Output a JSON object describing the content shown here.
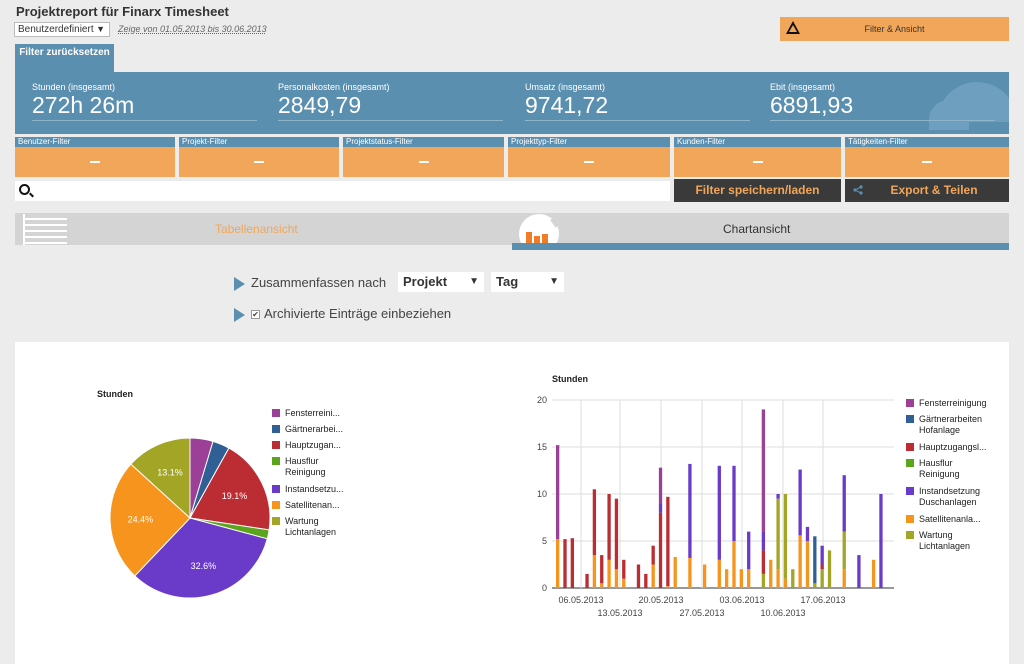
{
  "header": {
    "title": "Projektreport für Finarx Timesheet",
    "period_select": "Benutzerdefiniert",
    "period_text": "Zeige von 01.05.2013 bis 30.06.2013",
    "filter_view_button": "Filter & Ansicht",
    "reset_filter": "Filter zurücksetzen"
  },
  "kpis": [
    {
      "label": "Stunden (insgesamt)",
      "value": "272h 26m"
    },
    {
      "label": "Personalkosten (insgesamt)",
      "value": "2849,79"
    },
    {
      "label": "Umsatz (insgesamt)",
      "value": "9741,72"
    },
    {
      "label": "Ebit (insgesamt)",
      "value": "6891,93"
    }
  ],
  "filters": [
    {
      "label": "Benutzer-Filter",
      "value": "-"
    },
    {
      "label": "Projekt-Filter",
      "value": "-"
    },
    {
      "label": "Projektstatus-Filter",
      "value": "-"
    },
    {
      "label": "Projekttyp-Filter",
      "value": "-"
    },
    {
      "label": "Kunden-Filter",
      "value": "-"
    },
    {
      "label": "Tätigkeiten-Filter",
      "value": "-"
    }
  ],
  "actions": {
    "save_load": "Filter speichern/laden",
    "export_share": "Export & Teilen"
  },
  "views": {
    "table": "Tabellenansicht",
    "chart": "Chartansicht"
  },
  "options": {
    "summarize_label": "Zusammenfassen nach",
    "group_by": "Projekt",
    "interval": "Tag",
    "archived_label": "Archivierte Einträge einbeziehen"
  },
  "colors": {
    "Fensterreinigung": "#9c3f97",
    "Gärtnerarbeiten": "#2f5f95",
    "Hauptzugang": "#bb2c33",
    "Hausflur": "#5aa51b",
    "Instandsetzung": "#6a3bc9",
    "Satelliten": "#f7941d",
    "Wartung": "#a2a526"
  },
  "chart_data": [
    {
      "type": "pie",
      "title": "Stunden",
      "series_order": [
        "Fensterreinigung",
        "Gärtnerarbeiten",
        "Hauptzugang",
        "Hausflur",
        "Instandsetzung",
        "Satelliten",
        "Wartung"
      ],
      "legend": [
        "Fensterreini...",
        "Gärtnerarbei...",
        "Hauptzugan...",
        "Hausflur Reinigung",
        "Instandsetzu...",
        "Satellitenan...",
        "Wartung Lichtanlagen"
      ],
      "values": [
        4.6,
        3.4,
        19.1,
        1.8,
        32.6,
        24.4,
        13.1
      ],
      "slice_labels": [
        "",
        "",
        "19.1%",
        "",
        "32.6%",
        "24.4%",
        "13.1%"
      ]
    },
    {
      "type": "bar",
      "stacked": true,
      "title": "Stunden",
      "ylim": [
        0,
        20
      ],
      "y_ticks": [
        0,
        5,
        10,
        15,
        20
      ],
      "x_labels_row1": [
        "06.05.2013",
        "20.05.2013",
        "03.06.2013",
        "17.06.2013"
      ],
      "x_labels_row2": [
        "13.05.2013",
        "27.05.2013",
        "10.06.2013"
      ],
      "legend": [
        "Fensterreinigung",
        "Gärtnerarbeiten Hofanlage",
        "Hauptzugangsl...",
        "Hausflur Reinigung",
        "Instandsetzung Duschanlagen",
        "Satellitenanla...",
        "Wartung Lichtanlagen"
      ],
      "bars": [
        {
          "F": 10,
          "S": 5.2
        },
        {
          "H": 5.2
        },
        {
          "H": 5.3
        },
        {},
        {
          "H": 1.5
        },
        {
          "H": 7,
          "S": 3.5
        },
        {
          "H": 3,
          "S": 0.5
        },
        {
          "H": 7,
          "S": 3
        },
        {
          "H": 7.5,
          "S": 2
        },
        {
          "H": 2,
          "S": 1
        },
        {},
        {
          "H": 2.5
        },
        {
          "H": 1.5
        },
        {
          "H": 2,
          "S": 2.5
        },
        {
          "H": 8,
          "I": 1,
          "F": 3.8
        },
        {
          "H": 9.5,
          "S": 0.2
        },
        {
          "S": 3.3
        },
        {},
        {
          "I": 10,
          "S": 3.2
        },
        {},
        {
          "S": 2.5
        },
        {},
        {
          "I": 10,
          "S": 3
        },
        {
          "S": 2
        },
        {
          "I": 8,
          "S": 5
        },
        {
          "S": 2
        },
        {
          "I": 4,
          "S": 2
        },
        {},
        {
          "I": 2,
          "W": 1.5,
          "H": 2.5,
          "F": 13
        },
        {
          "S": 3
        },
        {
          "S": 2,
          "W": 7.5,
          "I": 0.5
        },
        {
          "W": 9,
          "S": 1
        },
        {
          "W": 2
        },
        {
          "S": 5.6,
          "I": 7
        },
        {
          "S": 5,
          "I": 1.5
        },
        {
          "W": 0.5,
          "G": 5
        },
        {
          "W": 2,
          "H": 0.5,
          "I": 2
        },
        {
          "W": 4
        },
        {},
        {
          "S": 2,
          "W": 4,
          "I": 6
        },
        {},
        {
          "I": 3.5
        },
        {},
        {
          "S": 3
        },
        {
          "I": 10
        },
        {}
      ]
    }
  ]
}
